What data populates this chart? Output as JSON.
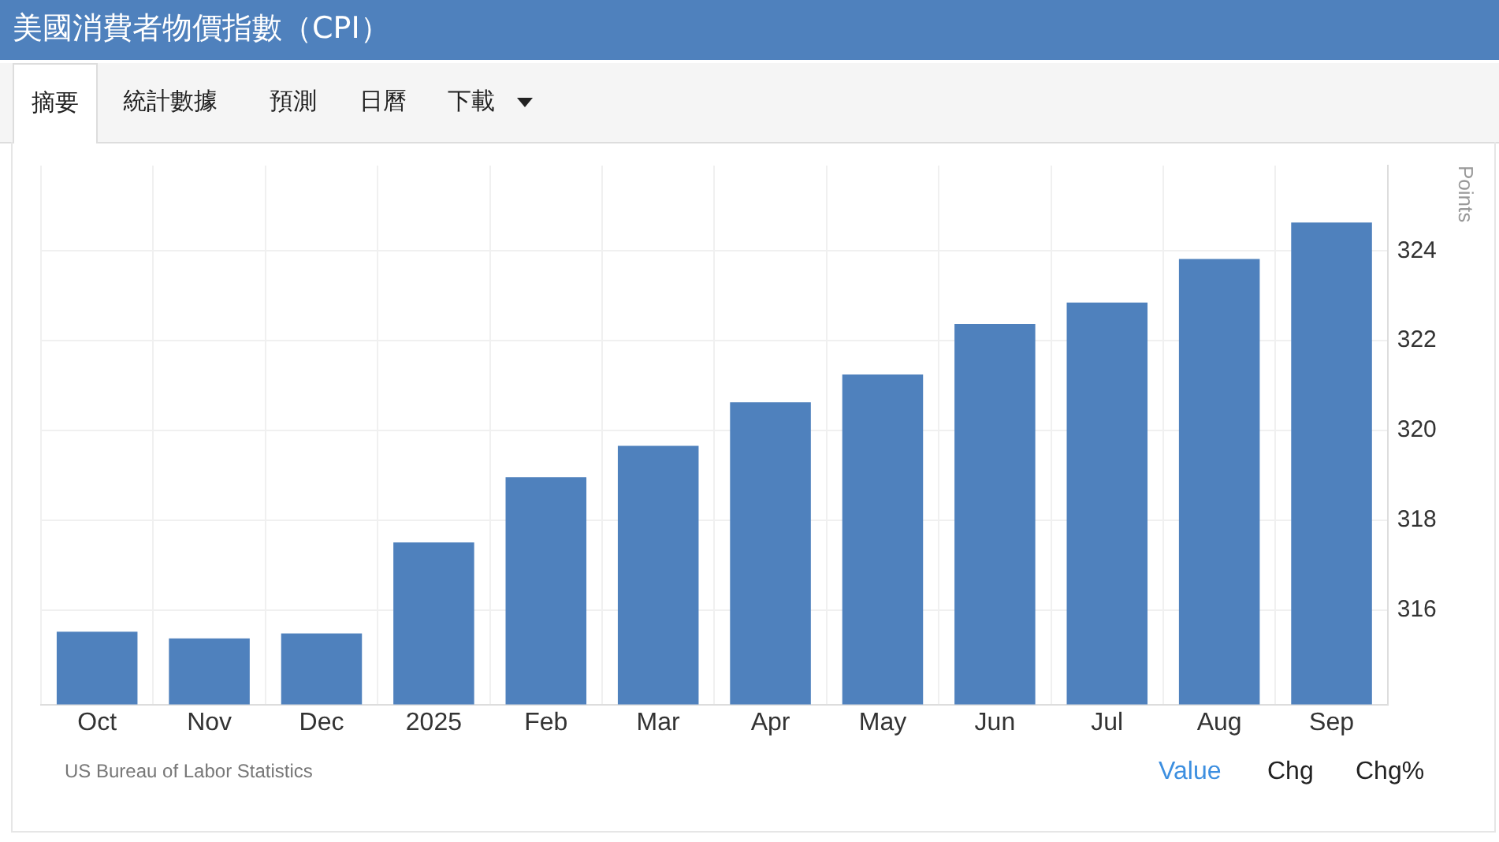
{
  "chart_data": {
    "type": "bar",
    "title": "美國消費者物價指數（CPI）",
    "ylabel": "Points",
    "categories": [
      "Oct",
      "Nov",
      "Dec",
      "2025",
      "Feb",
      "Mar",
      "Apr",
      "May",
      "Jun",
      "Jul",
      "Aug",
      "Sep"
    ],
    "values": [
      315.52,
      315.37,
      315.48,
      317.51,
      318.96,
      319.66,
      320.63,
      321.25,
      322.37,
      322.85,
      323.82,
      324.63
    ],
    "color": "#4f81bd",
    "ylim": [
      313.9,
      325.9
    ],
    "yticks": [
      316,
      318,
      320,
      322,
      324
    ],
    "grid": true,
    "legend": false,
    "annotations": [
      "US Bureau of Labor Statistics",
      "摘要",
      "統計數據",
      "預測",
      "日曆",
      "下載",
      "Value",
      "Chg",
      "Chg%"
    ]
  }
}
